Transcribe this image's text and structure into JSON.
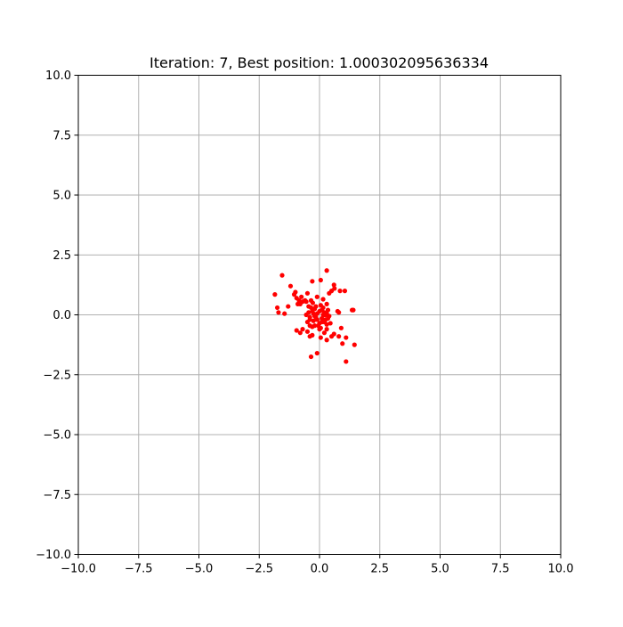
{
  "chart_data": {
    "type": "scatter",
    "title": "Iteration: 7, Best position: 1.000302095636334",
    "xlabel": "",
    "ylabel": "",
    "xlim": [
      -10,
      10
    ],
    "ylim": [
      -10,
      10
    ],
    "xticks": [
      -10.0,
      -7.5,
      -5.0,
      -2.5,
      0.0,
      2.5,
      5.0,
      7.5,
      10.0
    ],
    "xtick_labels": [
      "−10.0",
      "−7.5",
      "−5.0",
      "−2.5",
      "0.0",
      "2.5",
      "5.0",
      "7.5",
      "10.0"
    ],
    "yticks": [
      10.0,
      7.5,
      5.0,
      2.5,
      0.0,
      -2.5,
      -5.0,
      -7.5,
      -10.0
    ],
    "ytick_labels": [
      "10.0",
      "7.5",
      "5.0",
      "2.5",
      "0.0",
      "−2.5",
      "−5.0",
      "−7.5",
      "−10.0"
    ],
    "grid": true,
    "marker_color": "#ff0000",
    "grid_color": "#b0b0b0",
    "series": [
      {
        "x": [
          -1.85,
          -1.55,
          -1.45,
          -1.2,
          -1.0,
          -0.9,
          -0.85,
          -0.75,
          -0.7,
          -0.6,
          -0.5,
          -0.3,
          -0.28,
          0.05,
          0.3,
          0.5,
          0.6,
          0.62,
          0.85,
          1.05,
          1.35,
          -1.75,
          -1.7,
          -1.3,
          -1.05,
          -0.95,
          -0.8,
          -0.55,
          -0.45,
          -0.35,
          -0.1,
          0.15,
          0.4,
          0.75,
          0.8,
          1.4,
          -0.95,
          -0.8,
          -0.7,
          -0.5,
          -0.4,
          -0.3,
          -0.35,
          -0.1,
          0.05,
          0.2,
          0.3,
          0.5,
          0.6,
          0.8,
          0.9,
          1.1,
          0.95,
          1.1,
          1.45,
          0.3,
          0.05,
          -0.4,
          -0.45,
          -0.3,
          -0.2,
          -0.1,
          0.0,
          0.1,
          0.2,
          0.3,
          0.35,
          -0.4,
          -0.2,
          0.1,
          0.25,
          -0.5,
          -0.25,
          0.0,
          0.2,
          -0.35,
          -0.15,
          0.15,
          0.3,
          -0.05,
          0.05,
          -0.15,
          0.25,
          0.4,
          -0.55,
          0.45,
          -0.3,
          0.2,
          0.0,
          -0.1,
          0.1,
          -0.2,
          0.3,
          -0.4,
          0.35,
          -0.25,
          0.15
        ],
        "y": [
          0.85,
          1.65,
          0.05,
          1.2,
          0.95,
          0.45,
          0.6,
          0.75,
          0.55,
          0.6,
          0.9,
          1.4,
          0.5,
          1.45,
          1.85,
          1.0,
          1.25,
          1.1,
          1.0,
          1.0,
          0.2,
          0.3,
          0.1,
          0.35,
          0.85,
          0.7,
          0.45,
          0.55,
          0.35,
          0.6,
          0.75,
          0.65,
          0.9,
          0.15,
          0.1,
          0.2,
          -0.65,
          -0.75,
          -0.6,
          -0.7,
          -0.9,
          -0.85,
          -1.75,
          -1.6,
          -0.55,
          -0.75,
          -1.05,
          -0.9,
          -0.8,
          -0.9,
          -0.55,
          -0.95,
          -1.2,
          -1.95,
          -1.25,
          -0.6,
          -0.95,
          -0.45,
          0.1,
          0.15,
          0.25,
          0.05,
          0.15,
          0.2,
          0.1,
          0.05,
          0.2,
          -0.1,
          -0.05,
          -0.15,
          -0.2,
          -0.3,
          -0.25,
          -0.35,
          -0.3,
          0.3,
          0.35,
          0.3,
          -0.4,
          -0.45,
          0.4,
          -0.1,
          0.0,
          -0.05,
          0.0,
          -0.35,
          -0.5,
          0.0,
          -0.6,
          -0.2,
          -0.3,
          -0.45,
          0.45,
          -0.2,
          -0.15,
          0.05,
          0.0
        ]
      }
    ]
  }
}
